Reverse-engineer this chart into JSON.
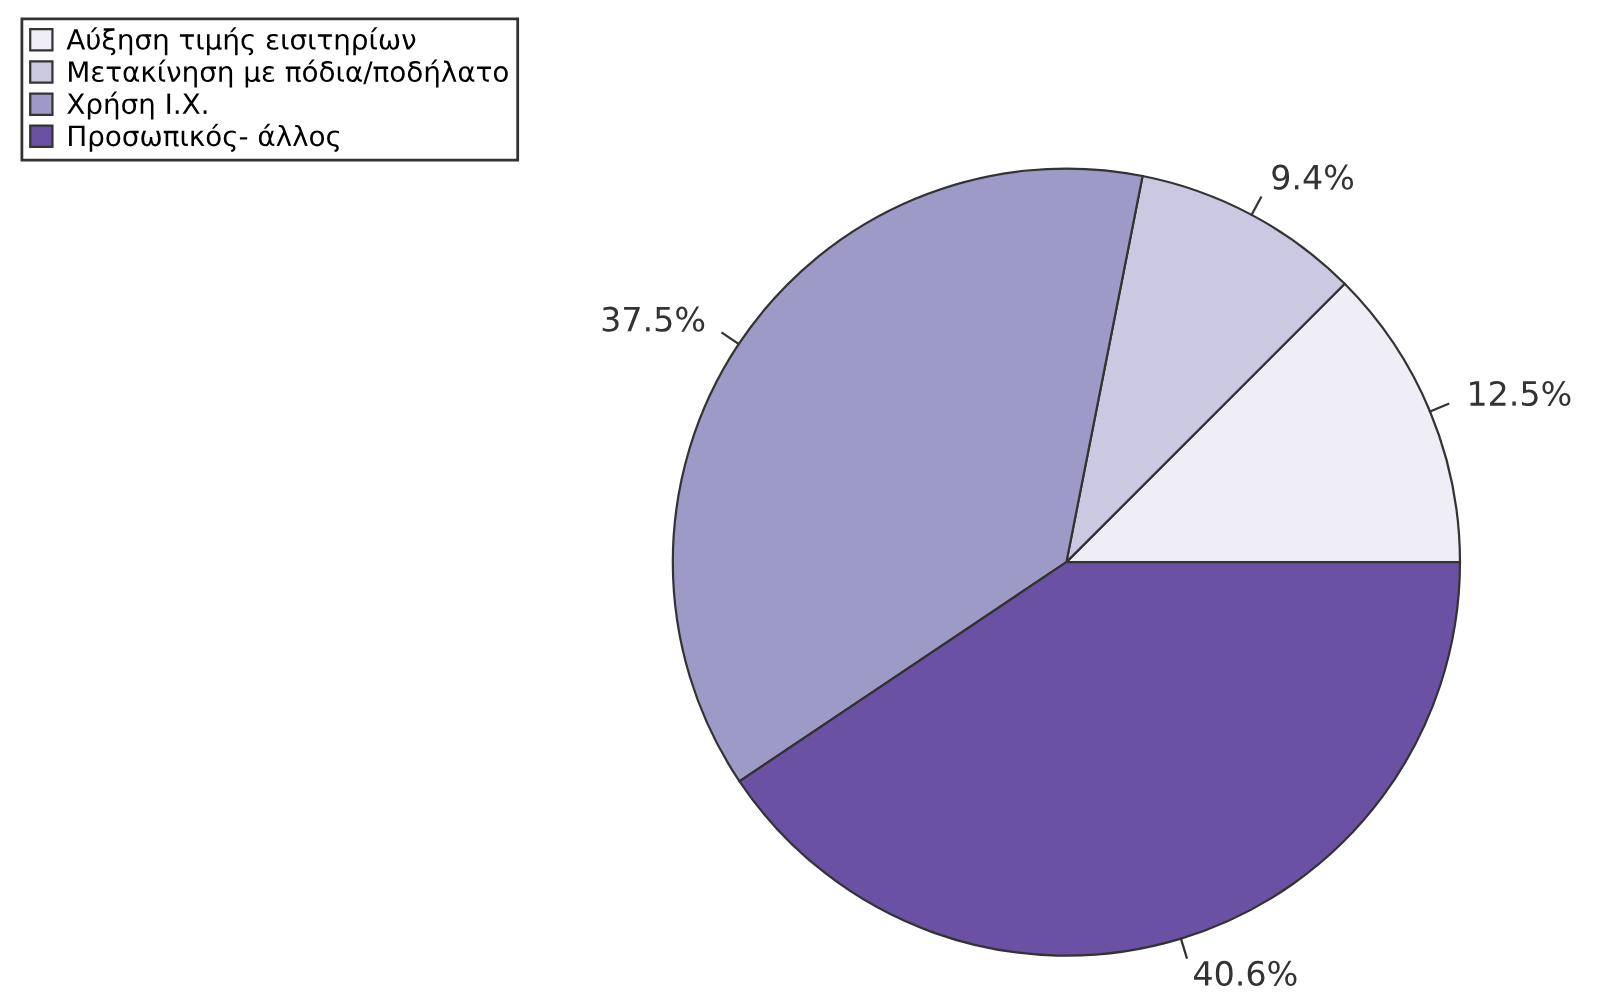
{
  "chart_data": {
    "type": "pie",
    "categories": [
      "Αύξηση τιμής εισιτηρίων",
      "Μετακίνηση με πόδια/ποδήλατο",
      "Χρήση Ι.Χ.",
      "Προσωπικός- άλλος"
    ],
    "values": [
      12.5,
      9.4,
      37.5,
      40.6
    ],
    "colors": [
      "#efedf5",
      "#cbc9e2",
      "#9e9ac8",
      "#6a51a3"
    ],
    "value_labels": [
      "12.5%",
      "9.4%",
      "37.5%",
      "40.6%"
    ],
    "legend": "top left"
  }
}
